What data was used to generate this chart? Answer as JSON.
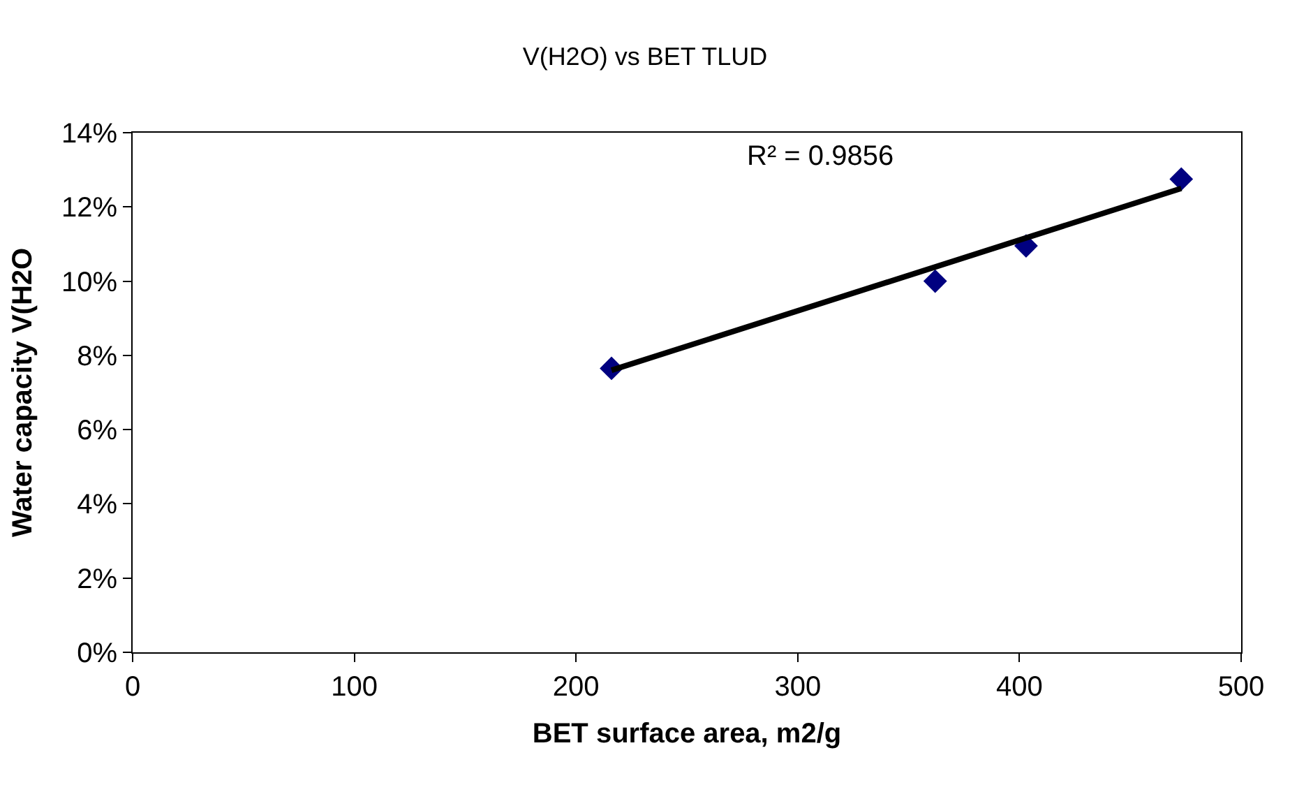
{
  "chart_data": {
    "type": "scatter",
    "title": "V(H2O) vs BET TLUD",
    "xlabel": "BET surface area, m2/g",
    "ylabel": "Water capacity V(H2O",
    "annotations": [
      "R² = 0.9856"
    ],
    "series": [
      {
        "color": "#000080",
        "marker": "diamond",
        "x": [
          216,
          362,
          403,
          473
        ],
        "values": [
          7.65,
          10.0,
          10.95,
          12.75
        ]
      },
      {
        "type": "line",
        "color": "#000000",
        "line_style": "solid",
        "marker": "none",
        "x": [
          216,
          473
        ],
        "values": [
          7.6,
          12.5
        ]
      }
    ],
    "xlim": [
      0,
      500
    ],
    "xticks": [
      0,
      100,
      200,
      300,
      400,
      500
    ],
    "ylim": [
      0,
      14
    ],
    "yticks": [
      {
        "value": 0,
        "label": "0%"
      },
      {
        "value": 2,
        "label": "2%"
      },
      {
        "value": 4,
        "label": "4%"
      },
      {
        "value": 6,
        "label": "6%"
      },
      {
        "value": 8,
        "label": "8%"
      },
      {
        "value": 10,
        "label": "10%"
      },
      {
        "value": 12,
        "label": "12%"
      },
      {
        "value": 14,
        "label": "14%"
      }
    ]
  }
}
